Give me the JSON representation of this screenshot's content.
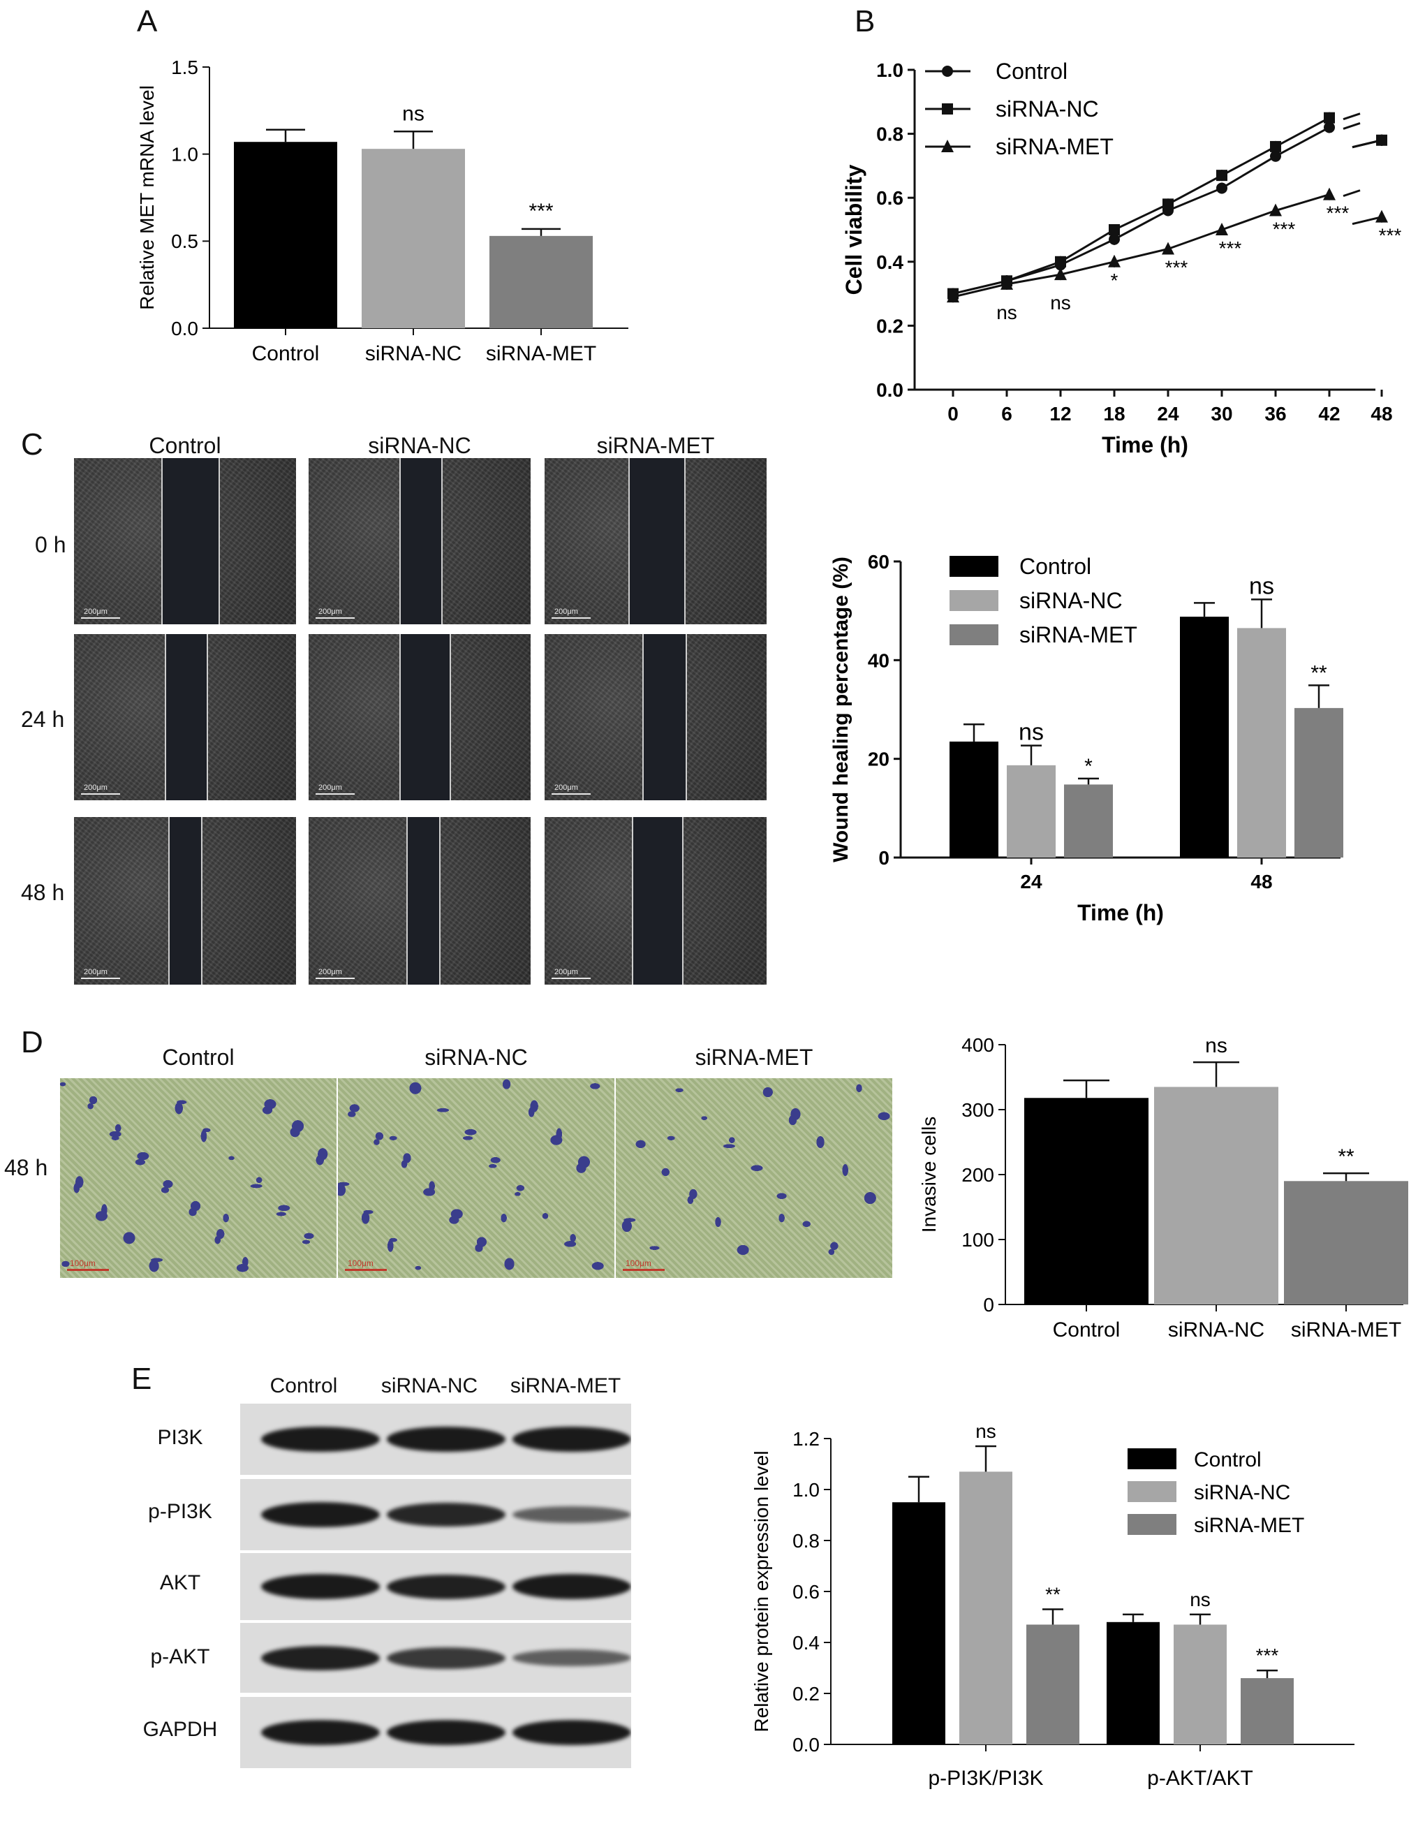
{
  "panels": {
    "A": {
      "letter": "A",
      "chart_data": {
        "type": "bar",
        "categories": [
          "Control",
          "siRNA-NC",
          "siRNA-MET"
        ],
        "values": [
          1.07,
          1.03,
          0.53
        ],
        "errors": [
          0.07,
          0.1,
          0.04
        ],
        "annotations": [
          "",
          "ns",
          "***"
        ],
        "colors": [
          "#000000",
          "#a6a6a6",
          "#7f7f7f"
        ],
        "ylabel": "Relative MET mRNA level",
        "ylim": [
          0,
          1.5
        ],
        "yticks": [
          "0.0",
          "0.5",
          "1.0",
          "1.5"
        ]
      }
    },
    "B": {
      "letter": "B",
      "chart_data": {
        "type": "line",
        "x": [
          0,
          6,
          12,
          18,
          24,
          30,
          36,
          42,
          48
        ],
        "xticks": [
          "0",
          "6",
          "12",
          "18",
          "24",
          "30",
          "36",
          "42",
          "48"
        ],
        "series": [
          {
            "name": "Control",
            "values": [
              0.3,
              0.34,
              0.39,
              0.47,
              0.56,
              0.63,
              0.73,
              0.82,
              0.78
            ],
            "marker": "circle"
          },
          {
            "name": "siRNA-NC",
            "values": [
              0.3,
              0.34,
              0.4,
              0.5,
              0.58,
              0.67,
              0.76,
              0.85,
              0.78
            ],
            "marker": "square"
          },
          {
            "name": "siRNA-MET",
            "values": [
              0.29,
              0.33,
              0.36,
              0.4,
              0.44,
              0.5,
              0.56,
              0.61,
              0.54
            ],
            "marker": "triangle"
          }
        ],
        "annotations": [
          "",
          "ns",
          "ns",
          "*",
          "***",
          "***",
          "***",
          "***",
          "***"
        ],
        "xlabel": "Time (h)",
        "ylabel": "Cell viability",
        "ylim": [
          0,
          1.0
        ],
        "yticks": [
          "0.0",
          "0.2",
          "0.4",
          "0.6",
          "0.8",
          "1.0"
        ],
        "legend": "top-left"
      }
    },
    "C": {
      "letter": "C",
      "columns": [
        "Control",
        "siRNA-NC",
        "siRNA-MET"
      ],
      "rows": [
        "0 h",
        "24 h",
        "48 h"
      ],
      "scale_label": "200μm",
      "chart_data": {
        "type": "bar",
        "categories": [
          "24",
          "48"
        ],
        "series": [
          {
            "name": "Control",
            "values": [
              23.5,
              48.8
            ],
            "errors": [
              3.5,
              2.8
            ],
            "color": "#000000"
          },
          {
            "name": "siRNA-NC",
            "values": [
              18.7,
              46.5
            ],
            "errors": [
              4.0,
              5.8
            ],
            "color": "#a6a6a6"
          },
          {
            "name": "siRNA-MET",
            "values": [
              14.8,
              30.3
            ],
            "errors": [
              1.2,
              4.6
            ],
            "color": "#7f7f7f"
          }
        ],
        "annotations": [
          [
            "",
            "ns",
            "*"
          ],
          [
            "",
            "ns",
            "**"
          ]
        ],
        "xlabel": "Time (h)",
        "ylabel": "Wound healing percentage (%)",
        "ylim": [
          0,
          60
        ],
        "yticks": [
          "0",
          "20",
          "40",
          "60"
        ],
        "legend": "top-left"
      }
    },
    "D": {
      "letter": "D",
      "columns": [
        "Control",
        "siRNA-NC",
        "siRNA-MET"
      ],
      "row": "48 h",
      "scale_label": "100μm",
      "chart_data": {
        "type": "bar",
        "categories": [
          "Control",
          "siRNA-NC",
          "siRNA-MET"
        ],
        "values": [
          318,
          335,
          190
        ],
        "errors": [
          27,
          38,
          12
        ],
        "annotations": [
          "",
          "ns",
          "**"
        ],
        "colors": [
          "#000000",
          "#a6a6a6",
          "#7f7f7f"
        ],
        "ylabel": "Invasive cells",
        "ylim": [
          0,
          400
        ],
        "yticks": [
          "0",
          "100",
          "200",
          "300",
          "400"
        ]
      }
    },
    "E": {
      "letter": "E",
      "columns": [
        "Control",
        "siRNA-NC",
        "siRNA-MET"
      ],
      "blots": [
        "PI3K",
        "p-PI3K",
        "AKT",
        "p-AKT",
        "GAPDH"
      ],
      "blot_intensities": [
        [
          1.0,
          1.0,
          1.0
        ],
        [
          1.0,
          0.9,
          0.45
        ],
        [
          1.0,
          0.95,
          1.0
        ],
        [
          0.95,
          0.75,
          0.45
        ],
        [
          1.0,
          1.0,
          1.0
        ]
      ],
      "chart_data": {
        "type": "bar",
        "categories": [
          "p-PI3K/PI3K",
          "p-AKT/AKT"
        ],
        "series": [
          {
            "name": "Control",
            "values": [
              0.95,
              0.48
            ],
            "errors": [
              0.1,
              0.03
            ],
            "color": "#000000"
          },
          {
            "name": "siRNA-NC",
            "values": [
              1.07,
              0.47
            ],
            "errors": [
              0.1,
              0.04
            ],
            "color": "#a6a6a6"
          },
          {
            "name": "siRNA-MET",
            "values": [
              0.47,
              0.26
            ],
            "errors": [
              0.06,
              0.03
            ],
            "color": "#7f7f7f"
          }
        ],
        "annotations": [
          [
            "",
            "ns",
            "**"
          ],
          [
            "",
            "ns",
            "***"
          ]
        ],
        "ylabel": "Relative protein expression level",
        "ylim": [
          0,
          1.2
        ],
        "yticks": [
          "0.0",
          "0.2",
          "0.4",
          "0.6",
          "0.8",
          "1.0",
          "1.2"
        ],
        "legend": "top-right"
      }
    }
  }
}
